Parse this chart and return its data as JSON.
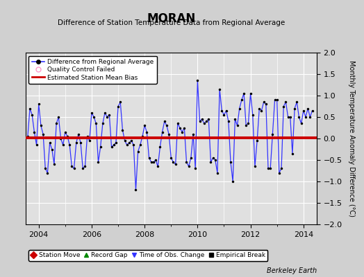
{
  "title": "MORAN",
  "subtitle": "Difference of Station Temperature Data from Regional Average",
  "ylabel": "Monthly Temperature Anomaly Difference (°C)",
  "xlim": [
    2003.5,
    2014.5
  ],
  "ylim": [
    -2,
    2
  ],
  "yticks": [
    -2,
    -1.5,
    -1,
    -0.5,
    0,
    0.5,
    1,
    1.5,
    2
  ],
  "xticks": [
    2004,
    2006,
    2008,
    2010,
    2012,
    2014
  ],
  "bias_value": 0.02,
  "plot_bg": "#e0e0e0",
  "fig_bg": "#d0d0d0",
  "line_color": "#3333ff",
  "bias_color": "#cc0000",
  "marker_color": "#000000",
  "qc_color": "#ff99cc",
  "berkeley_earth_text": "Berkeley Earth",
  "legend2_entries": [
    {
      "label": "Station Move",
      "color": "#cc0000",
      "marker": "D"
    },
    {
      "label": "Record Gap",
      "color": "#008800",
      "marker": "^"
    },
    {
      "label": "Time of Obs. Change",
      "color": "#3333ff",
      "marker": "v"
    },
    {
      "label": "Empirical Break",
      "color": "#000000",
      "marker": "s"
    }
  ],
  "data_x": [
    2003.583,
    2003.667,
    2003.75,
    2003.833,
    2003.917,
    2004.0,
    2004.083,
    2004.167,
    2004.25,
    2004.333,
    2004.417,
    2004.5,
    2004.583,
    2004.667,
    2004.75,
    2004.833,
    2004.917,
    2005.0,
    2005.083,
    2005.167,
    2005.25,
    2005.333,
    2005.417,
    2005.5,
    2005.583,
    2005.667,
    2005.75,
    2005.833,
    2005.917,
    2006.0,
    2006.083,
    2006.167,
    2006.25,
    2006.333,
    2006.417,
    2006.5,
    2006.583,
    2006.667,
    2006.75,
    2006.833,
    2006.917,
    2007.0,
    2007.083,
    2007.167,
    2007.25,
    2007.333,
    2007.417,
    2007.5,
    2007.583,
    2007.667,
    2007.75,
    2007.833,
    2007.917,
    2008.0,
    2008.083,
    2008.167,
    2008.25,
    2008.333,
    2008.417,
    2008.5,
    2008.583,
    2008.667,
    2008.75,
    2008.833,
    2008.917,
    2009.0,
    2009.083,
    2009.167,
    2009.25,
    2009.333,
    2009.417,
    2009.5,
    2009.583,
    2009.667,
    2009.75,
    2009.833,
    2009.917,
    2010.0,
    2010.083,
    2010.167,
    2010.25,
    2010.333,
    2010.417,
    2010.5,
    2010.583,
    2010.667,
    2010.75,
    2010.833,
    2010.917,
    2011.0,
    2011.083,
    2011.167,
    2011.25,
    2011.333,
    2011.417,
    2011.5,
    2011.583,
    2011.667,
    2011.75,
    2011.833,
    2011.917,
    2012.0,
    2012.083,
    2012.167,
    2012.25,
    2012.333,
    2012.417,
    2012.5,
    2012.583,
    2012.667,
    2012.75,
    2012.833,
    2012.917,
    2013.0,
    2013.083,
    2013.167,
    2013.25,
    2013.333,
    2013.417,
    2013.5,
    2013.583,
    2013.667,
    2013.75,
    2013.833,
    2013.917,
    2014.0,
    2014.083,
    2014.167,
    2014.25,
    2014.333
  ],
  "data_y": [
    0.05,
    0.7,
    0.55,
    0.15,
    -0.15,
    0.8,
    0.3,
    0.1,
    -0.7,
    -0.8,
    -0.1,
    -0.25,
    -0.6,
    0.35,
    0.5,
    0.0,
    -0.15,
    0.15,
    0.05,
    -0.15,
    -0.65,
    -0.7,
    -0.1,
    0.1,
    -0.1,
    -0.7,
    -0.65,
    0.05,
    -0.05,
    0.6,
    0.5,
    0.35,
    -0.55,
    -0.2,
    0.35,
    0.6,
    0.5,
    0.55,
    -0.2,
    -0.15,
    -0.1,
    0.75,
    0.85,
    0.2,
    -0.05,
    -0.15,
    -0.1,
    -0.05,
    -0.15,
    -1.2,
    -0.3,
    -0.15,
    0.05,
    0.3,
    0.15,
    -0.45,
    -0.55,
    -0.55,
    -0.5,
    -0.65,
    -0.2,
    0.15,
    0.4,
    0.3,
    0.1,
    -0.45,
    -0.55,
    -0.6,
    0.35,
    0.25,
    0.15,
    0.25,
    -0.55,
    -0.65,
    -0.45,
    0.1,
    -0.7,
    1.35,
    0.4,
    0.45,
    0.35,
    0.4,
    0.45,
    -0.55,
    -0.45,
    -0.5,
    -0.8,
    1.15,
    0.65,
    0.55,
    0.65,
    0.4,
    -0.55,
    -1.0,
    0.45,
    0.3,
    0.7,
    0.9,
    1.05,
    0.3,
    0.35,
    1.05,
    0.55,
    -0.65,
    -0.05,
    0.7,
    0.65,
    0.85,
    0.8,
    -0.7,
    -0.7,
    0.1,
    0.9,
    0.9,
    -0.8,
    -0.7,
    0.75,
    0.85,
    0.5,
    0.5,
    -0.35,
    0.7,
    0.85,
    0.5,
    0.35,
    0.65,
    0.5,
    0.7,
    0.5,
    0.65
  ]
}
